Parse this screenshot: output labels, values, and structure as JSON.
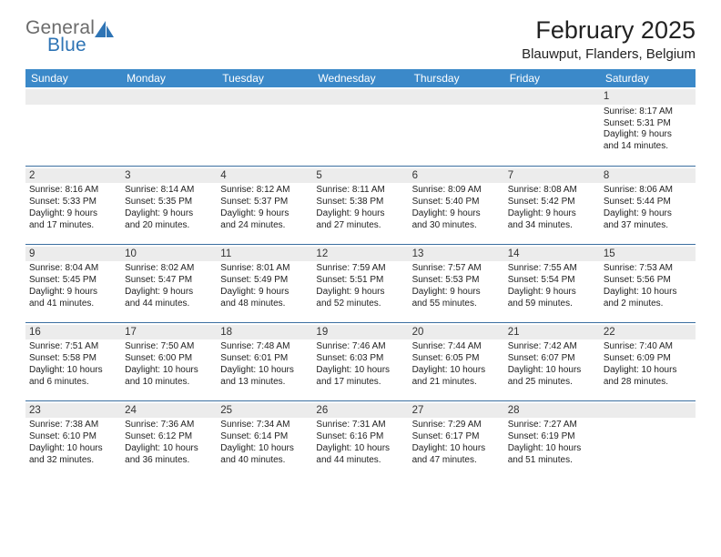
{
  "logo": {
    "general": "General",
    "blue": "Blue",
    "sail_color": "#2e74b5",
    "general_color": "#6b6b6b"
  },
  "title": "February 2025",
  "location": "Blauwput, Flanders, Belgium",
  "colors": {
    "header_bg": "#3b89c9",
    "header_text": "#ffffff",
    "row_border": "#3b6fa0",
    "daynum_bg": "#ececec",
    "text": "#222222"
  },
  "fonts": {
    "title_size": 27,
    "location_size": 15,
    "dayhead_size": 12,
    "daynum_size": 11.5,
    "detail_size": 10
  },
  "day_headers": [
    "Sunday",
    "Monday",
    "Tuesday",
    "Wednesday",
    "Thursday",
    "Friday",
    "Saturday"
  ],
  "weeks": [
    [
      {
        "blank": true
      },
      {
        "blank": true
      },
      {
        "blank": true
      },
      {
        "blank": true
      },
      {
        "blank": true
      },
      {
        "blank": true
      },
      {
        "num": "1",
        "sunrise": "Sunrise: 8:17 AM",
        "sunset": "Sunset: 5:31 PM",
        "day1": "Daylight: 9 hours",
        "day2": "and 14 minutes."
      }
    ],
    [
      {
        "num": "2",
        "sunrise": "Sunrise: 8:16 AM",
        "sunset": "Sunset: 5:33 PM",
        "day1": "Daylight: 9 hours",
        "day2": "and 17 minutes."
      },
      {
        "num": "3",
        "sunrise": "Sunrise: 8:14 AM",
        "sunset": "Sunset: 5:35 PM",
        "day1": "Daylight: 9 hours",
        "day2": "and 20 minutes."
      },
      {
        "num": "4",
        "sunrise": "Sunrise: 8:12 AM",
        "sunset": "Sunset: 5:37 PM",
        "day1": "Daylight: 9 hours",
        "day2": "and 24 minutes."
      },
      {
        "num": "5",
        "sunrise": "Sunrise: 8:11 AM",
        "sunset": "Sunset: 5:38 PM",
        "day1": "Daylight: 9 hours",
        "day2": "and 27 minutes."
      },
      {
        "num": "6",
        "sunrise": "Sunrise: 8:09 AM",
        "sunset": "Sunset: 5:40 PM",
        "day1": "Daylight: 9 hours",
        "day2": "and 30 minutes."
      },
      {
        "num": "7",
        "sunrise": "Sunrise: 8:08 AM",
        "sunset": "Sunset: 5:42 PM",
        "day1": "Daylight: 9 hours",
        "day2": "and 34 minutes."
      },
      {
        "num": "8",
        "sunrise": "Sunrise: 8:06 AM",
        "sunset": "Sunset: 5:44 PM",
        "day1": "Daylight: 9 hours",
        "day2": "and 37 minutes."
      }
    ],
    [
      {
        "num": "9",
        "sunrise": "Sunrise: 8:04 AM",
        "sunset": "Sunset: 5:45 PM",
        "day1": "Daylight: 9 hours",
        "day2": "and 41 minutes."
      },
      {
        "num": "10",
        "sunrise": "Sunrise: 8:02 AM",
        "sunset": "Sunset: 5:47 PM",
        "day1": "Daylight: 9 hours",
        "day2": "and 44 minutes."
      },
      {
        "num": "11",
        "sunrise": "Sunrise: 8:01 AM",
        "sunset": "Sunset: 5:49 PM",
        "day1": "Daylight: 9 hours",
        "day2": "and 48 minutes."
      },
      {
        "num": "12",
        "sunrise": "Sunrise: 7:59 AM",
        "sunset": "Sunset: 5:51 PM",
        "day1": "Daylight: 9 hours",
        "day2": "and 52 minutes."
      },
      {
        "num": "13",
        "sunrise": "Sunrise: 7:57 AM",
        "sunset": "Sunset: 5:53 PM",
        "day1": "Daylight: 9 hours",
        "day2": "and 55 minutes."
      },
      {
        "num": "14",
        "sunrise": "Sunrise: 7:55 AM",
        "sunset": "Sunset: 5:54 PM",
        "day1": "Daylight: 9 hours",
        "day2": "and 59 minutes."
      },
      {
        "num": "15",
        "sunrise": "Sunrise: 7:53 AM",
        "sunset": "Sunset: 5:56 PM",
        "day1": "Daylight: 10 hours",
        "day2": "and 2 minutes."
      }
    ],
    [
      {
        "num": "16",
        "sunrise": "Sunrise: 7:51 AM",
        "sunset": "Sunset: 5:58 PM",
        "day1": "Daylight: 10 hours",
        "day2": "and 6 minutes."
      },
      {
        "num": "17",
        "sunrise": "Sunrise: 7:50 AM",
        "sunset": "Sunset: 6:00 PM",
        "day1": "Daylight: 10 hours",
        "day2": "and 10 minutes."
      },
      {
        "num": "18",
        "sunrise": "Sunrise: 7:48 AM",
        "sunset": "Sunset: 6:01 PM",
        "day1": "Daylight: 10 hours",
        "day2": "and 13 minutes."
      },
      {
        "num": "19",
        "sunrise": "Sunrise: 7:46 AM",
        "sunset": "Sunset: 6:03 PM",
        "day1": "Daylight: 10 hours",
        "day2": "and 17 minutes."
      },
      {
        "num": "20",
        "sunrise": "Sunrise: 7:44 AM",
        "sunset": "Sunset: 6:05 PM",
        "day1": "Daylight: 10 hours",
        "day2": "and 21 minutes."
      },
      {
        "num": "21",
        "sunrise": "Sunrise: 7:42 AM",
        "sunset": "Sunset: 6:07 PM",
        "day1": "Daylight: 10 hours",
        "day2": "and 25 minutes."
      },
      {
        "num": "22",
        "sunrise": "Sunrise: 7:40 AM",
        "sunset": "Sunset: 6:09 PM",
        "day1": "Daylight: 10 hours",
        "day2": "and 28 minutes."
      }
    ],
    [
      {
        "num": "23",
        "sunrise": "Sunrise: 7:38 AM",
        "sunset": "Sunset: 6:10 PM",
        "day1": "Daylight: 10 hours",
        "day2": "and 32 minutes."
      },
      {
        "num": "24",
        "sunrise": "Sunrise: 7:36 AM",
        "sunset": "Sunset: 6:12 PM",
        "day1": "Daylight: 10 hours",
        "day2": "and 36 minutes."
      },
      {
        "num": "25",
        "sunrise": "Sunrise: 7:34 AM",
        "sunset": "Sunset: 6:14 PM",
        "day1": "Daylight: 10 hours",
        "day2": "and 40 minutes."
      },
      {
        "num": "26",
        "sunrise": "Sunrise: 7:31 AM",
        "sunset": "Sunset: 6:16 PM",
        "day1": "Daylight: 10 hours",
        "day2": "and 44 minutes."
      },
      {
        "num": "27",
        "sunrise": "Sunrise: 7:29 AM",
        "sunset": "Sunset: 6:17 PM",
        "day1": "Daylight: 10 hours",
        "day2": "and 47 minutes."
      },
      {
        "num": "28",
        "sunrise": "Sunrise: 7:27 AM",
        "sunset": "Sunset: 6:19 PM",
        "day1": "Daylight: 10 hours",
        "day2": "and 51 minutes."
      },
      {
        "blank": true
      }
    ]
  ]
}
